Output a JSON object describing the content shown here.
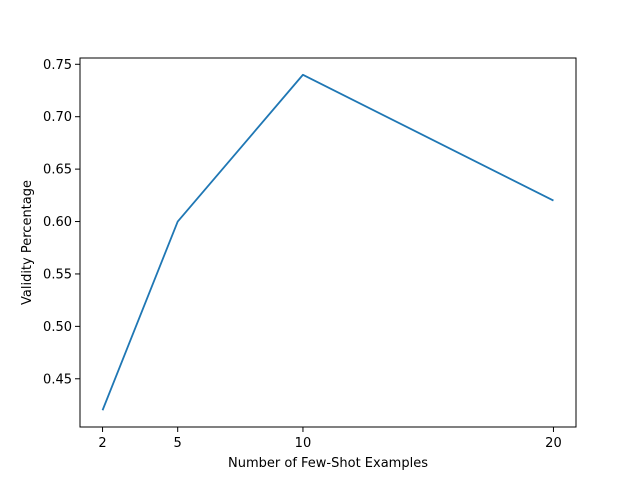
{
  "chart_data": {
    "type": "line",
    "title": "",
    "xlabel": "Number of Few-Shot Examples",
    "ylabel": "Validity Percentage",
    "x": [
      2,
      5,
      10,
      20
    ],
    "series": [
      {
        "values": [
          0.42,
          0.6,
          0.74,
          0.62
        ]
      }
    ],
    "xticks": [
      2,
      5,
      10,
      20
    ],
    "xtick_labels": [
      "2",
      "5",
      "10",
      "20"
    ],
    "yticks": [
      0.45,
      0.5,
      0.55,
      0.6,
      0.65,
      0.7,
      0.75
    ],
    "ytick_labels": [
      "0.45",
      "0.50",
      "0.55",
      "0.60",
      "0.65",
      "0.70",
      "0.75"
    ],
    "xlim": [
      1.1,
      20.9
    ],
    "ylim": [
      0.404,
      0.756
    ],
    "grid": false,
    "legend": "none",
    "line_color": "#1f77b4"
  }
}
